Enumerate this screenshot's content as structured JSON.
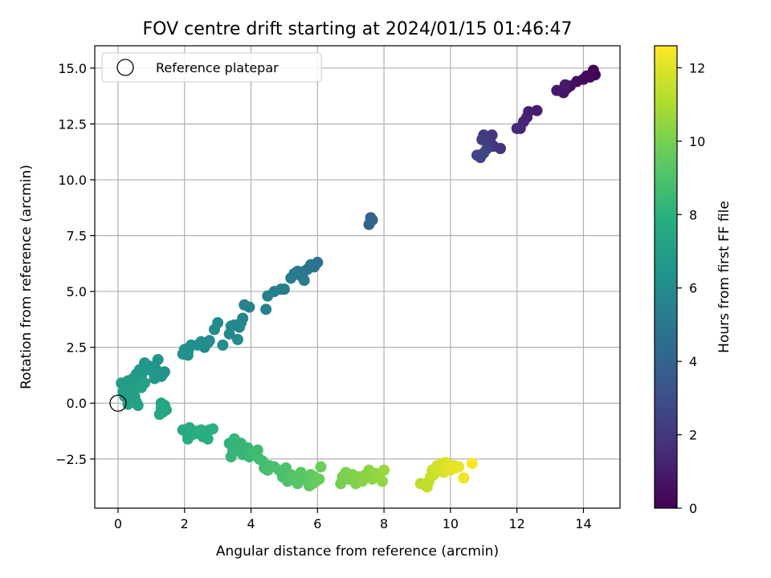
{
  "chart_data": {
    "type": "scatter",
    "title": "FOV centre drift starting at 2024/01/15 01:46:47",
    "xlabel": "Angular distance from reference (arcmin)",
    "ylabel": "Rotation from reference (arcmin)",
    "xlim": [
      -0.7,
      15.1
    ],
    "ylim": [
      -4.7,
      16.0
    ],
    "x_ticks": [
      0,
      2,
      4,
      6,
      8,
      10,
      12,
      14
    ],
    "y_ticks": [
      -2.5,
      0.0,
      2.5,
      5.0,
      7.5,
      10.0,
      12.5,
      15.0
    ],
    "x_tick_labels": [
      "0",
      "2",
      "4",
      "6",
      "8",
      "10",
      "12",
      "14"
    ],
    "y_tick_labels": [
      "−2.5",
      "0.0",
      "2.5",
      "5.0",
      "7.5",
      "10.0",
      "12.5",
      "15.0"
    ],
    "grid": true,
    "colormap": "viridis",
    "colorbar": {
      "label": "Hours from first FF file",
      "min": 0,
      "max": 12.6,
      "ticks": [
        0,
        2,
        4,
        6,
        8,
        10,
        12
      ],
      "tick_labels": [
        "0",
        "2",
        "4",
        "6",
        "8",
        "10",
        "12"
      ]
    },
    "legend": {
      "position": "upper-left",
      "entries": [
        "Reference platepar"
      ]
    },
    "reference_point": {
      "x": 0.0,
      "y": 0.0
    },
    "points": [
      [
        14.3,
        14.9,
        0.05
      ],
      [
        14.2,
        14.6,
        0.1
      ],
      [
        14.35,
        14.7,
        0.15
      ],
      [
        14.1,
        14.65,
        0.2
      ],
      [
        14.0,
        14.5,
        0.3
      ],
      [
        13.8,
        14.4,
        0.4
      ],
      [
        13.6,
        14.2,
        0.5
      ],
      [
        13.5,
        14.1,
        0.6
      ],
      [
        13.4,
        13.9,
        0.7
      ],
      [
        13.2,
        14.0,
        0.8
      ],
      [
        13.45,
        14.25,
        0.9
      ],
      [
        12.6,
        13.1,
        1.0
      ],
      [
        12.35,
        13.05,
        1.1
      ],
      [
        12.3,
        12.8,
        1.2
      ],
      [
        12.2,
        12.6,
        1.3
      ],
      [
        12.1,
        12.3,
        1.4
      ],
      [
        12.0,
        12.3,
        1.5
      ],
      [
        11.5,
        11.4,
        1.8
      ],
      [
        11.3,
        11.5,
        1.9
      ],
      [
        11.25,
        12.0,
        2.0
      ],
      [
        11.2,
        11.7,
        2.1
      ],
      [
        11.0,
        12.0,
        2.2
      ],
      [
        10.95,
        11.8,
        2.3
      ],
      [
        11.1,
        11.4,
        2.4
      ],
      [
        10.9,
        11.0,
        2.5
      ],
      [
        10.8,
        11.1,
        2.6
      ],
      [
        11.0,
        11.2,
        2.7
      ],
      [
        7.6,
        8.3,
        3.9
      ],
      [
        7.55,
        8.0,
        4.0
      ],
      [
        7.65,
        8.2,
        4.1
      ],
      [
        6.0,
        6.3,
        4.6
      ],
      [
        5.9,
        6.1,
        4.7
      ],
      [
        5.8,
        6.2,
        4.8
      ],
      [
        5.7,
        6.0,
        4.9
      ],
      [
        5.6,
        5.9,
        5.0
      ],
      [
        5.5,
        5.7,
        5.0
      ],
      [
        5.4,
        5.9,
        5.1
      ],
      [
        5.3,
        5.8,
        5.2
      ],
      [
        5.2,
        5.6,
        5.2
      ],
      [
        5.6,
        5.5,
        5.3
      ],
      [
        5.0,
        5.1,
        5.3
      ],
      [
        4.9,
        5.1,
        5.4
      ],
      [
        4.7,
        5.0,
        5.4
      ],
      [
        4.5,
        4.8,
        5.5
      ],
      [
        4.45,
        4.2,
        5.5
      ],
      [
        3.95,
        4.3,
        5.6
      ],
      [
        3.8,
        4.4,
        5.6
      ],
      [
        3.75,
        3.8,
        5.7
      ],
      [
        3.7,
        3.6,
        5.7
      ],
      [
        3.65,
        3.4,
        5.8
      ],
      [
        3.5,
        3.5,
        5.8
      ],
      [
        3.4,
        3.45,
        5.9
      ],
      [
        3.35,
        3.1,
        5.9
      ],
      [
        3.6,
        2.85,
        6.0
      ],
      [
        3.0,
        3.6,
        6.0
      ],
      [
        2.9,
        3.3,
        6.05
      ],
      [
        3.15,
        2.6,
        6.05
      ],
      [
        2.75,
        2.8,
        6.1
      ],
      [
        2.7,
        2.7,
        6.1
      ],
      [
        2.6,
        2.5,
        6.15
      ],
      [
        2.5,
        2.75,
        6.15
      ],
      [
        2.4,
        2.6,
        6.2
      ],
      [
        2.2,
        2.6,
        6.2
      ],
      [
        2.15,
        2.5,
        6.25
      ],
      [
        2.1,
        2.3,
        6.25
      ],
      [
        2.0,
        2.4,
        6.3
      ],
      [
        1.95,
        2.2,
        6.3
      ],
      [
        2.1,
        2.15,
        6.35
      ],
      [
        1.4,
        1.4,
        6.4
      ],
      [
        1.35,
        1.3,
        6.45
      ],
      [
        1.3,
        1.2,
        6.45
      ],
      [
        1.2,
        1.95,
        6.5
      ],
      [
        1.15,
        1.5,
        6.5
      ],
      [
        1.1,
        1.1,
        6.55
      ],
      [
        1.05,
        1.4,
        6.55
      ],
      [
        0.95,
        1.65,
        6.6
      ],
      [
        0.8,
        1.8,
        6.6
      ],
      [
        0.75,
        1.4,
        6.65
      ],
      [
        0.7,
        1.2,
        6.65
      ],
      [
        0.65,
        1.5,
        6.7
      ],
      [
        0.6,
        1.0,
        6.7
      ],
      [
        0.55,
        1.3,
        6.75
      ],
      [
        0.5,
        0.9,
        6.75
      ],
      [
        0.45,
        1.1,
        6.8
      ],
      [
        0.4,
        0.8,
        6.8
      ],
      [
        0.35,
        0.6,
        6.85
      ],
      [
        0.3,
        1.0,
        6.85
      ],
      [
        0.25,
        0.8,
        6.9
      ],
      [
        0.2,
        0.7,
        6.9
      ],
      [
        0.15,
        0.5,
        6.95
      ],
      [
        0.1,
        0.9,
        6.95
      ],
      [
        0.2,
        0.3,
        7.0
      ],
      [
        0.3,
        0.4,
        7.0
      ],
      [
        0.35,
        0.2,
        7.05
      ],
      [
        0.4,
        0.1,
        7.05
      ],
      [
        0.5,
        0.3,
        7.1
      ],
      [
        0.45,
        0.6,
        7.1
      ],
      [
        0.55,
        0.05,
        7.15
      ],
      [
        0.6,
        -0.1,
        7.15
      ],
      [
        0.3,
        -0.05,
        7.2
      ],
      [
        0.7,
        0.7,
        7.2
      ],
      [
        0.8,
        0.9,
        7.25
      ],
      [
        1.3,
        0.0,
        7.3
      ],
      [
        1.4,
        -0.1,
        7.35
      ],
      [
        1.45,
        -0.3,
        7.4
      ],
      [
        1.35,
        -0.4,
        7.45
      ],
      [
        1.25,
        -0.5,
        7.5
      ],
      [
        1.3,
        -0.2,
        7.5
      ],
      [
        1.95,
        -1.2,
        7.6
      ],
      [
        2.05,
        -1.3,
        7.65
      ],
      [
        2.15,
        -1.1,
        7.7
      ],
      [
        2.25,
        -1.4,
        7.7
      ],
      [
        2.1,
        -1.6,
        7.75
      ],
      [
        2.3,
        -1.25,
        7.75
      ],
      [
        2.4,
        -1.35,
        7.8
      ],
      [
        2.5,
        -1.2,
        7.8
      ],
      [
        2.55,
        -1.5,
        7.85
      ],
      [
        2.6,
        -1.3,
        7.85
      ],
      [
        2.7,
        -1.6,
        7.9
      ],
      [
        2.75,
        -1.2,
        7.9
      ],
      [
        2.85,
        -1.15,
        7.95
      ],
      [
        3.35,
        -1.8,
        8.1
      ],
      [
        3.45,
        -2.0,
        8.15
      ],
      [
        3.5,
        -1.6,
        8.2
      ],
      [
        3.55,
        -1.9,
        8.2
      ],
      [
        3.45,
        -2.2,
        8.25
      ],
      [
        3.6,
        -2.1,
        8.25
      ],
      [
        3.4,
        -2.4,
        8.3
      ],
      [
        3.7,
        -1.8,
        8.3
      ],
      [
        3.75,
        -2.3,
        8.35
      ],
      [
        3.8,
        -2.1,
        8.35
      ],
      [
        3.9,
        -2.0,
        8.4
      ],
      [
        3.95,
        -2.4,
        8.45
      ],
      [
        4.05,
        -2.2,
        8.5
      ],
      [
        4.15,
        -2.3,
        8.55
      ],
      [
        4.2,
        -2.1,
        8.55
      ],
      [
        4.25,
        -2.5,
        8.6
      ],
      [
        4.35,
        -2.6,
        8.65
      ],
      [
        4.4,
        -2.9,
        8.7
      ],
      [
        4.5,
        -3.0,
        8.75
      ],
      [
        4.55,
        -2.8,
        8.8
      ],
      [
        4.7,
        -2.85,
        8.85
      ],
      [
        4.85,
        -3.0,
        8.9
      ],
      [
        4.95,
        -3.3,
        8.95
      ],
      [
        5.05,
        -2.9,
        9.0
      ],
      [
        5.1,
        -3.5,
        9.05
      ],
      [
        5.2,
        -3.2,
        9.1
      ],
      [
        5.3,
        -3.4,
        9.15
      ],
      [
        5.4,
        -3.6,
        9.2
      ],
      [
        5.5,
        -3.1,
        9.25
      ],
      [
        5.6,
        -3.3,
        9.3
      ],
      [
        5.7,
        -3.5,
        9.35
      ],
      [
        5.75,
        -3.7,
        9.4
      ],
      [
        5.8,
        -3.2,
        9.45
      ],
      [
        5.85,
        -3.6,
        9.5
      ],
      [
        5.9,
        -3.3,
        9.55
      ],
      [
        5.95,
        -3.5,
        9.6
      ],
      [
        6.05,
        -3.4,
        9.65
      ],
      [
        6.1,
        -2.85,
        9.7
      ],
      [
        6.7,
        -3.6,
        9.9
      ],
      [
        6.75,
        -3.3,
        9.95
      ],
      [
        6.85,
        -3.1,
        10.0
      ],
      [
        6.95,
        -3.4,
        10.05
      ],
      [
        7.05,
        -3.2,
        10.1
      ],
      [
        7.15,
        -3.6,
        10.15
      ],
      [
        7.25,
        -3.3,
        10.2
      ],
      [
        7.35,
        -3.5,
        10.25
      ],
      [
        7.45,
        -3.2,
        10.3
      ],
      [
        7.55,
        -3.0,
        10.35
      ],
      [
        7.65,
        -3.4,
        10.4
      ],
      [
        7.75,
        -3.15,
        10.45
      ],
      [
        7.85,
        -3.3,
        10.5
      ],
      [
        7.95,
        -3.5,
        10.55
      ],
      [
        8.0,
        -3.0,
        10.6
      ],
      [
        9.1,
        -3.6,
        11.3
      ],
      [
        9.2,
        -3.65,
        11.35
      ],
      [
        9.3,
        -3.75,
        11.4
      ],
      [
        9.35,
        -3.5,
        11.45
      ],
      [
        9.4,
        -3.3,
        11.5
      ],
      [
        9.45,
        -3.0,
        11.55
      ],
      [
        9.5,
        -3.2,
        11.6
      ],
      [
        9.55,
        -2.9,
        11.65
      ],
      [
        9.6,
        -2.8,
        11.7
      ],
      [
        9.7,
        -3.0,
        11.75
      ],
      [
        9.75,
        -2.7,
        11.8
      ],
      [
        9.8,
        -3.1,
        11.85
      ],
      [
        9.85,
        -2.65,
        11.9
      ],
      [
        9.9,
        -2.9,
        11.95
      ],
      [
        9.95,
        -2.75,
        12.0
      ],
      [
        10.0,
        -3.0,
        12.05
      ],
      [
        10.1,
        -2.8,
        12.1
      ],
      [
        10.15,
        -2.9,
        12.15
      ],
      [
        10.25,
        -2.85,
        12.2
      ],
      [
        10.4,
        -3.35,
        12.3
      ],
      [
        10.65,
        -2.7,
        12.5
      ]
    ]
  }
}
